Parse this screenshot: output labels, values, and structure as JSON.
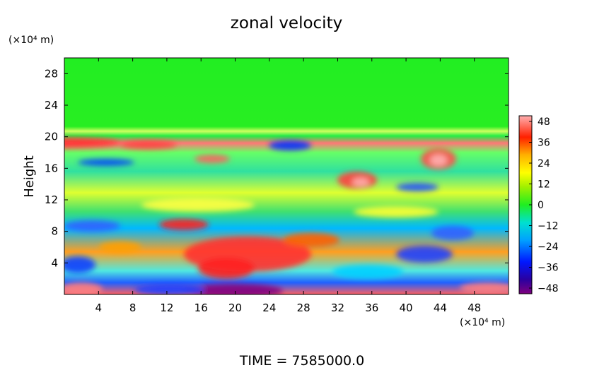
{
  "chart_data": {
    "type": "heatmap",
    "title": "zonal velocity",
    "ylabel": "Height",
    "y_unit": "(×10⁴ m)",
    "x_unit": "(×10⁴ m)",
    "x_ticks": [
      "4",
      "8",
      "12",
      "16",
      "20",
      "24",
      "28",
      "32",
      "36",
      "40",
      "44",
      "48"
    ],
    "y_ticks": [
      "4",
      "8",
      "12",
      "16",
      "20",
      "24",
      "28"
    ],
    "xlim": [
      0,
      52
    ],
    "ylim": [
      0,
      30
    ],
    "colorbar": {
      "ticks": [
        "48",
        "36",
        "24",
        "12",
        "0",
        "−12",
        "−24",
        "−36",
        "−48"
      ],
      "range": [
        -48,
        48
      ]
    },
    "time_label": "TIME  =  7585000.0",
    "colors": {
      "upper_field": "#22ee22",
      "positive_max": "#ff9090",
      "negative_max": "#880088"
    }
  }
}
